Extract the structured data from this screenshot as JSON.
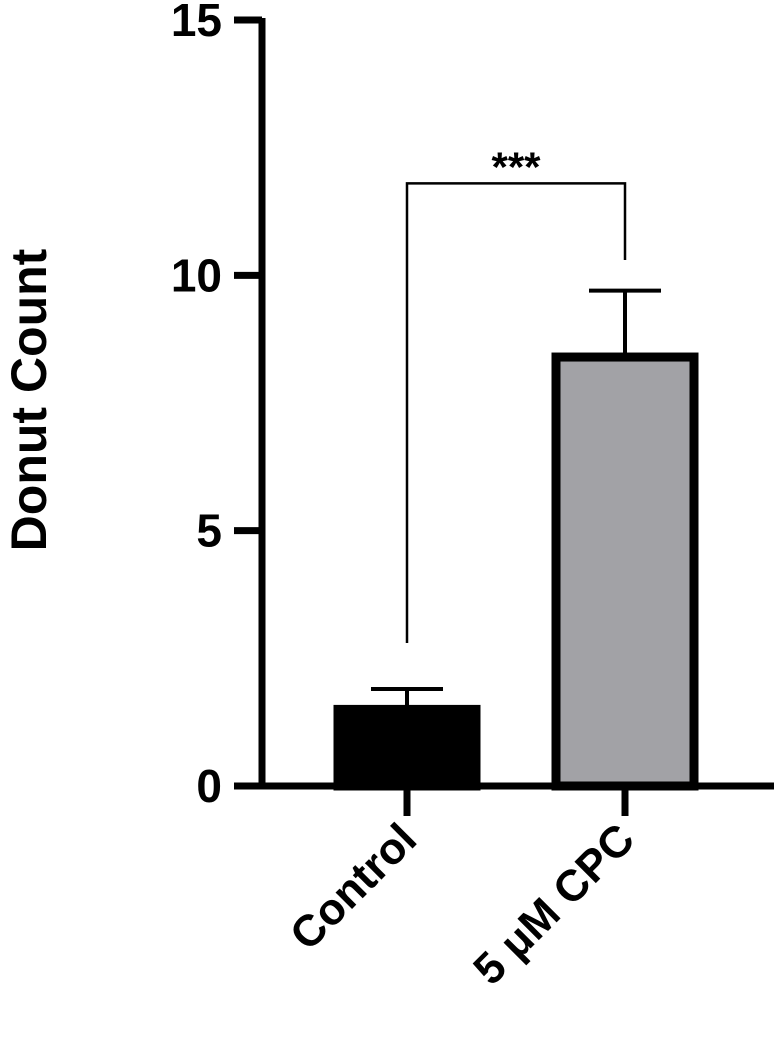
{
  "chart_data": {
    "type": "bar",
    "title": "",
    "xlabel": "",
    "ylabel": "Donut  Count",
    "categories": [
      "Control",
      "5 μM CPC"
    ],
    "values": [
      1.5,
      8.4
    ],
    "error_upper": [
      1.9,
      9.7
    ],
    "bar_colors": [
      "#000000",
      "#a2a2a6"
    ],
    "ylim": [
      0,
      15
    ],
    "yticks": [
      "0",
      "5",
      "10",
      "15"
    ],
    "grid": false,
    "legend": "none",
    "significance": {
      "label": "***",
      "between": [
        "Control",
        "5 μM CPC"
      ],
      "y": 11.8
    }
  }
}
